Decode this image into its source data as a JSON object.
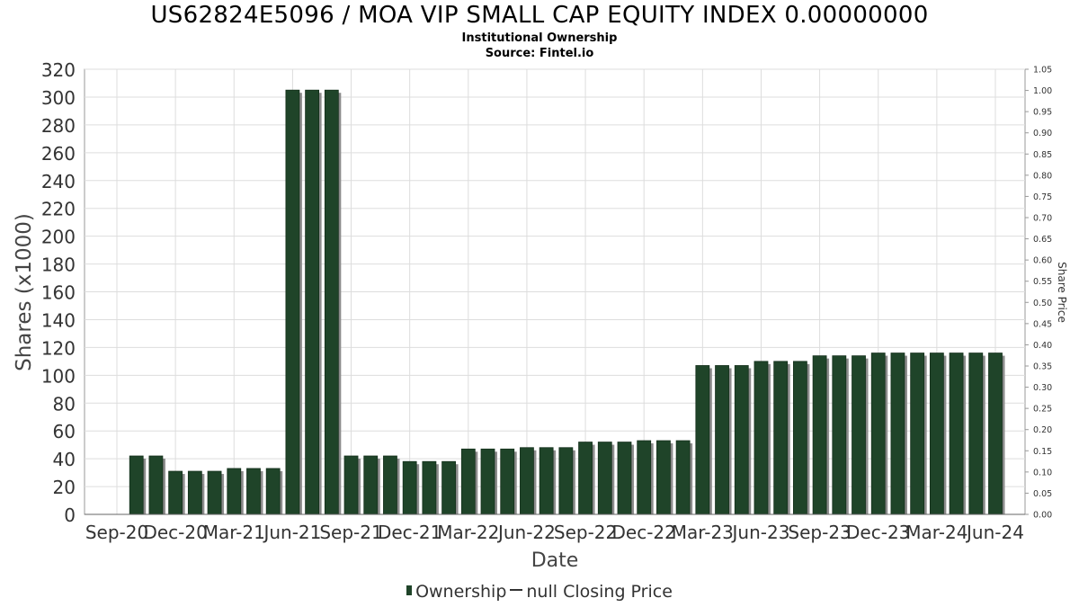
{
  "chart_data": {
    "type": "bar",
    "title": "US62824E5096 / MOA VIP SMALL CAP EQUITY INDEX 0.00000000",
    "subtitle": "Institutional Ownership",
    "source": "Source: Fintel.io",
    "xlabel": "Date",
    "ylabel": "Shares (x1000)",
    "y2label": "Share Price",
    "ylim": [
      0,
      320
    ],
    "y2lim": [
      0,
      1.05
    ],
    "yticks": [
      0,
      20,
      40,
      60,
      80,
      100,
      120,
      140,
      160,
      180,
      200,
      220,
      240,
      260,
      280,
      300,
      320
    ],
    "y2ticks": [
      "0.00",
      "0.05",
      "0.10",
      "0.15",
      "0.20",
      "0.25",
      "0.30",
      "0.35",
      "0.40",
      "0.45",
      "0.50",
      "0.55",
      "0.60",
      "0.65",
      "0.70",
      "0.75",
      "0.80",
      "0.85",
      "0.90",
      "0.95",
      "1.00",
      "1.05"
    ],
    "xticks": [
      "Sep-20",
      "Dec-20",
      "Mar-21",
      "Jun-21",
      "Sep-21",
      "Dec-21",
      "Mar-22",
      "Jun-22",
      "Sep-22",
      "Dec-22",
      "Mar-23",
      "Jun-23",
      "Sep-23",
      "Dec-23",
      "Mar-24",
      "Jun-24"
    ],
    "grid": true,
    "legend_position": "bottom",
    "series": [
      {
        "name": "Ownership",
        "color": "#1f4429",
        "values": [
          42,
          42,
          31,
          31,
          31,
          33,
          33,
          33,
          305,
          305,
          305,
          42,
          42,
          42,
          38,
          38,
          38,
          47,
          47,
          47,
          48,
          48,
          48,
          52,
          52,
          52,
          53,
          53,
          53,
          107,
          107,
          107,
          110,
          110,
          110,
          114,
          114,
          114,
          116,
          116,
          116,
          116,
          116,
          116,
          116
        ]
      }
    ],
    "legend": {
      "ownership": "Ownership",
      "price": "null Closing Price"
    }
  }
}
